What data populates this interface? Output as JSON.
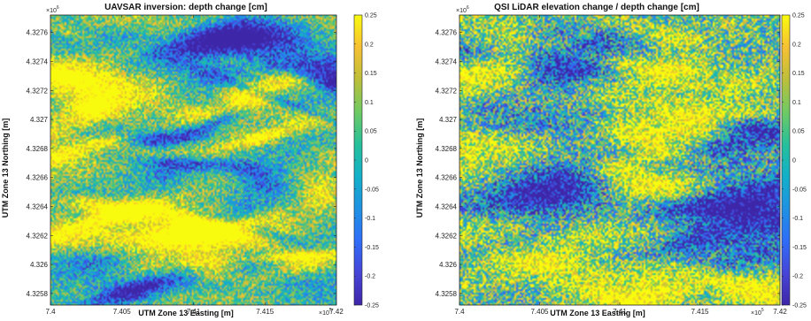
{
  "chart_data": [
    {
      "type": "heatmap",
      "title": "UAVSAR inversion: depth change [cm]",
      "xlabel": "UTM Zone 13 Easting [m]",
      "ylabel": "UTM Zone 13 Northing [m]",
      "x_multiplier": "×10",
      "x_multiplier_exp": "5",
      "y_multiplier": "×10",
      "y_multiplier_exp": "6",
      "x_ticks": [
        "7.4",
        "7.405",
        "7.41",
        "7.415",
        "7.42"
      ],
      "x_tick_values": [
        7.4,
        7.405,
        7.41,
        7.415,
        7.42
      ],
      "xlim": [
        7.4,
        7.42
      ],
      "y_ticks": [
        "4.3276",
        "4.3274",
        "4.3272",
        "4.327",
        "4.3268",
        "4.3266",
        "4.3264",
        "4.3262",
        "4.326",
        "4.3258"
      ],
      "y_tick_values": [
        4.3276,
        4.3274,
        4.3272,
        4.327,
        4.3268,
        4.3266,
        4.3264,
        4.3262,
        4.326,
        4.3258
      ],
      "ylim": [
        4.32572,
        4.32772
      ],
      "colorbar_ticks": [
        "0.25",
        "0.2",
        "0.15",
        "0.1",
        "0.05",
        "0",
        "-0.05",
        "-0.1",
        "-0.15",
        "-0.2",
        "-0.25"
      ],
      "colorbar_values": [
        0.25,
        0.2,
        0.15,
        0.1,
        0.05,
        0,
        -0.05,
        -0.1,
        -0.15,
        -0.2,
        -0.25
      ],
      "clim": [
        -0.25,
        0.25
      ],
      "colormap": [
        "#3e26a8",
        "#4745d8",
        "#2f6ef8",
        "#1f92e2",
        "#13b0c9",
        "#27c09a",
        "#6fca63",
        "#bdbf3a",
        "#f7c034",
        "#f9fb0e"
      ]
    },
    {
      "type": "heatmap",
      "title": "QSI LiDAR elevation change / depth change [cm]",
      "xlabel": "UTM Zone 13 Easting [m]",
      "ylabel": "UTM Zone 13 Northing [m]",
      "x_multiplier": "×10",
      "x_multiplier_exp": "5",
      "y_multiplier": "×10",
      "y_multiplier_exp": "6",
      "x_ticks": [
        "7.4",
        "7.405",
        "7.41",
        "7.415",
        "7.42"
      ],
      "x_tick_values": [
        7.4,
        7.405,
        7.41,
        7.415,
        7.42
      ],
      "xlim": [
        7.4,
        7.42
      ],
      "y_ticks": [
        "4.3276",
        "4.3274",
        "4.3272",
        "4.327",
        "4.3268",
        "4.3266",
        "4.3264",
        "4.3262",
        "4.326",
        "4.3258"
      ],
      "y_tick_values": [
        4.3276,
        4.3274,
        4.3272,
        4.327,
        4.3268,
        4.3266,
        4.3264,
        4.3262,
        4.326,
        4.3258
      ],
      "ylim": [
        4.32572,
        4.32772
      ],
      "colorbar_ticks": [
        "0.25",
        "0.2",
        "0.15",
        "0.1",
        "0.05",
        "0",
        "-0.05",
        "-0.1",
        "-0.15",
        "-0.2",
        "-0.25"
      ],
      "colorbar_values": [
        0.25,
        0.2,
        0.15,
        0.1,
        0.05,
        0,
        -0.05,
        -0.1,
        -0.15,
        -0.2,
        -0.25
      ],
      "clim": [
        -0.25,
        0.25
      ],
      "colormap": [
        "#3e26a8",
        "#4745d8",
        "#2f6ef8",
        "#1f92e2",
        "#13b0c9",
        "#27c09a",
        "#6fca63",
        "#bdbf3a",
        "#f7c034",
        "#f9fb0e"
      ]
    }
  ]
}
